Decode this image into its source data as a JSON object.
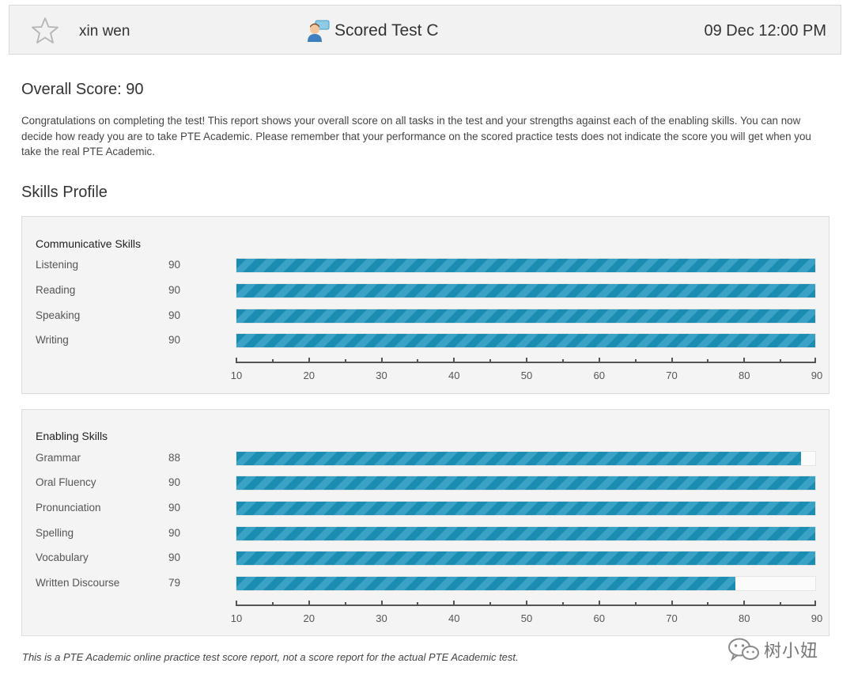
{
  "header": {
    "user_name": "xin wen",
    "test_title": "Scored Test C",
    "date_time": "09 Dec 12:00 PM",
    "star_icon": "star-outline-icon",
    "test_icon": "person-chat-icon"
  },
  "overall": {
    "title": "Overall Score: 90",
    "score": 90,
    "description": "Congratulations on completing the test! This report shows your overall score on all tasks in the test and your strengths against each of the enabling skills. You can now decide how ready you are to take PTE Academic. Please remember that your performance on the scored practice tests does not indicate the score you will get when you take the real PTE Academic."
  },
  "skills_profile": {
    "title": "Skills Profile"
  },
  "chart_data": [
    {
      "type": "bar",
      "title": "Communicative Skills",
      "categories": [
        "Listening",
        "Reading",
        "Speaking",
        "Writing"
      ],
      "values": [
        90,
        90,
        90,
        90
      ],
      "xlim": [
        10,
        90
      ],
      "ticks": [
        "10",
        "20",
        "30",
        "40",
        "50",
        "60",
        "70",
        "80",
        "90"
      ],
      "bar_color": "#1b8db3"
    },
    {
      "type": "bar",
      "title": "Enabling Skills",
      "categories": [
        "Grammar",
        "Oral Fluency",
        "Pronunciation",
        "Spelling",
        "Vocabulary",
        "Written Discourse"
      ],
      "values": [
        88,
        90,
        90,
        90,
        90,
        79
      ],
      "xlim": [
        10,
        90
      ],
      "ticks": [
        "10",
        "20",
        "30",
        "40",
        "50",
        "60",
        "70",
        "80",
        "90"
      ],
      "bar_color": "#1b8db3"
    }
  ],
  "footer": {
    "disclaimer": "This is a PTE Academic online practice test score report, not a score report for the actual PTE Academic test."
  },
  "watermark": {
    "text": "树小妞",
    "icon": "wechat-icon"
  }
}
